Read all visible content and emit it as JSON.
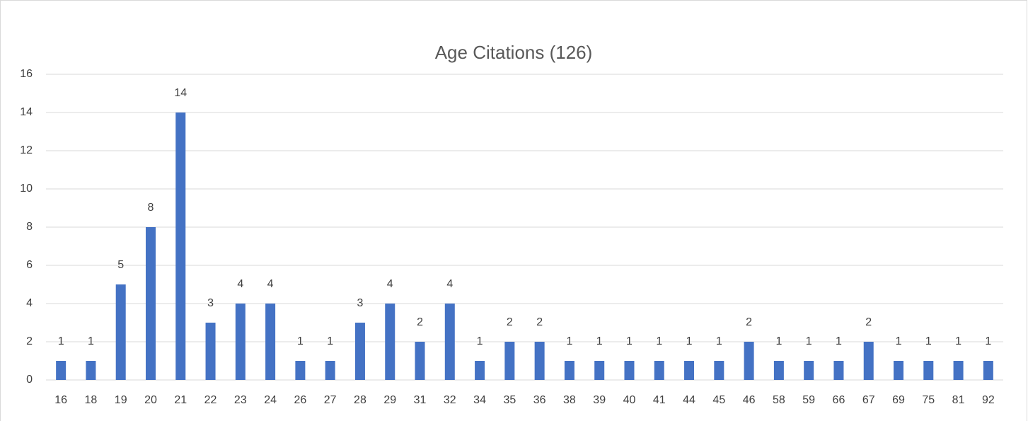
{
  "chart_data": {
    "type": "bar",
    "title": "Age Citations (126)",
    "categories": [
      "16",
      "18",
      "19",
      "20",
      "21",
      "22",
      "23",
      "24",
      "26",
      "27",
      "28",
      "29",
      "31",
      "32",
      "34",
      "35",
      "36",
      "38",
      "39",
      "40",
      "41",
      "44",
      "45",
      "46",
      "58",
      "59",
      "66",
      "67",
      "69",
      "75",
      "81",
      "92"
    ],
    "values": [
      1,
      1,
      5,
      8,
      14,
      3,
      4,
      4,
      1,
      1,
      3,
      4,
      2,
      4,
      1,
      2,
      2,
      1,
      1,
      1,
      1,
      1,
      1,
      2,
      1,
      1,
      1,
      2,
      1,
      1,
      1,
      1
    ],
    "color": "#4472c4",
    "ylim": [
      0,
      16
    ],
    "yticks": [
      0,
      2,
      4,
      6,
      8,
      10,
      12,
      14,
      16
    ],
    "grid": true
  }
}
